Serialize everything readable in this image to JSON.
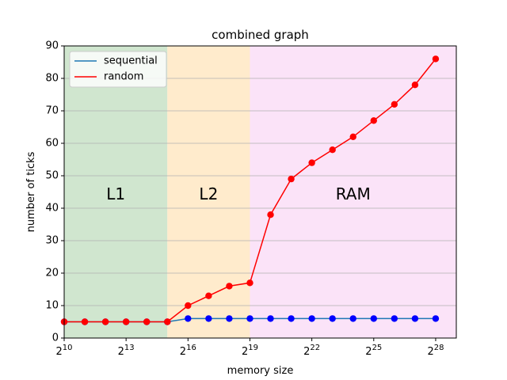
{
  "chart_data": {
    "type": "line",
    "title": "combined graph",
    "xlabel": "memory size",
    "ylabel": "number of ticks",
    "x_scale": "log2",
    "x": [
      1024,
      2048,
      4096,
      8192,
      16384,
      32768,
      65536,
      131072,
      262144,
      524288,
      1048576,
      2097152,
      4194304,
      8388608,
      16777216,
      33554432,
      67108864,
      134217728,
      268435456
    ],
    "x_ticks": [
      {
        "value": 1024,
        "base": "2",
        "exp": "10"
      },
      {
        "value": 8192,
        "base": "2",
        "exp": "13"
      },
      {
        "value": 65536,
        "base": "2",
        "exp": "16"
      },
      {
        "value": 524288,
        "base": "2",
        "exp": "19"
      },
      {
        "value": 4194304,
        "base": "2",
        "exp": "22"
      },
      {
        "value": 33554432,
        "base": "2",
        "exp": "25"
      },
      {
        "value": 268435456,
        "base": "2",
        "exp": "28"
      }
    ],
    "xlim": [
      1024,
      536870912
    ],
    "ylim": [
      0,
      90
    ],
    "y_ticks": [
      0,
      10,
      20,
      30,
      40,
      50,
      60,
      70,
      80,
      90
    ],
    "grid": "horizontal",
    "legend_position": "top-left",
    "series": [
      {
        "name": "sequential",
        "legend_color": "#1f77b4",
        "line_color": "#1f77b4",
        "marker_color": "#0000ff",
        "values": [
          5,
          5,
          5,
          5,
          5,
          5,
          6,
          6,
          6,
          6,
          6,
          6,
          6,
          6,
          6,
          6,
          6,
          6,
          6
        ]
      },
      {
        "name": "random",
        "legend_color": "#ff0000",
        "line_color": "#ff0000",
        "marker_color": "#ff0000",
        "values": [
          5,
          5,
          5,
          5,
          5,
          5,
          10,
          13,
          16,
          17,
          38,
          49,
          54,
          58,
          62,
          67,
          72,
          78,
          86
        ]
      }
    ],
    "regions": [
      {
        "label": "L1",
        "from": 1024,
        "to": 32768,
        "color": "#d0e6cf"
      },
      {
        "label": "L2",
        "from": 32768,
        "to": 524288,
        "color": "#ffebcc"
      },
      {
        "label": "RAM",
        "from": 524288,
        "to": 536870912,
        "color": "#fbe3f8"
      }
    ]
  }
}
